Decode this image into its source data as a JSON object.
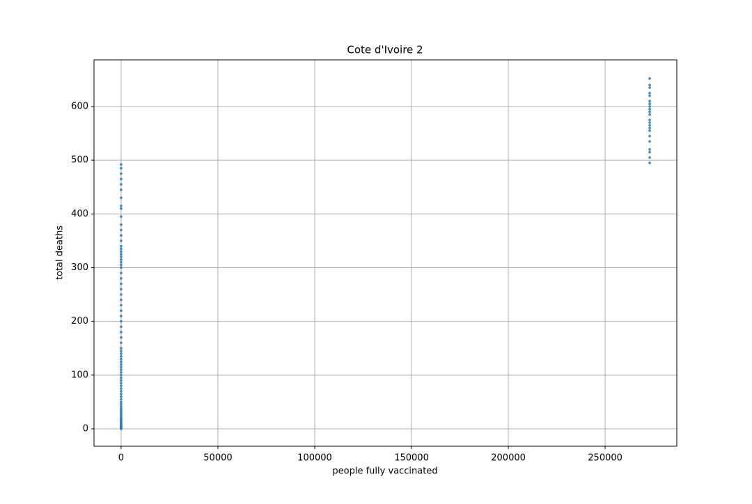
{
  "chart_data": {
    "type": "scatter",
    "title": "Cote d'Ivoire 2",
    "x_label": "people fully vaccinated",
    "y_label": "total deaths",
    "color": "#1f77b4",
    "grid": true,
    "xlim": [
      -14000,
      287000
    ],
    "ylim": [
      -32.4,
      686.8
    ],
    "xticks": [
      0,
      50000,
      100000,
      150000,
      200000,
      250000
    ],
    "yticks": [
      0,
      100,
      200,
      300,
      400,
      500,
      600
    ],
    "x": [
      0,
      0,
      0,
      0,
      0,
      0,
      0,
      0,
      0,
      0,
      0,
      0,
      0,
      0,
      0,
      0,
      0,
      0,
      0,
      0,
      0,
      0,
      0,
      0,
      0,
      0,
      0,
      0,
      0,
      0,
      0,
      0,
      0,
      0,
      0,
      0,
      0,
      0,
      0,
      0,
      0,
      0,
      0,
      0,
      0,
      0,
      0,
      0,
      0,
      0,
      0,
      0,
      0,
      0,
      0,
      0,
      0,
      0,
      0,
      0,
      0,
      0,
      0,
      0,
      0,
      0,
      0,
      0,
      0,
      0,
      0,
      0,
      0,
      0,
      0,
      0,
      0,
      0,
      0,
      0,
      273000,
      273000,
      273000,
      273000,
      273000,
      273000,
      273000,
      273000,
      273000,
      273000,
      273000,
      273000,
      273000,
      273000,
      273000,
      273000,
      273000,
      273000,
      273000,
      273000,
      273000,
      273000
    ],
    "values": [
      0,
      1,
      2,
      3,
      4,
      5,
      6,
      8,
      10,
      12,
      14,
      16,
      18,
      20,
      23,
      26,
      29,
      32,
      35,
      38,
      42,
      46,
      50,
      55,
      60,
      65,
      70,
      75,
      80,
      85,
      90,
      95,
      100,
      105,
      110,
      115,
      120,
      125,
      130,
      135,
      140,
      145,
      150,
      160,
      170,
      180,
      190,
      200,
      210,
      220,
      230,
      240,
      250,
      260,
      270,
      280,
      290,
      300,
      305,
      310,
      315,
      320,
      325,
      330,
      335,
      340,
      350,
      360,
      370,
      380,
      395,
      410,
      415,
      430,
      445,
      455,
      465,
      475,
      485,
      492,
      495,
      505,
      515,
      520,
      535,
      545,
      555,
      560,
      565,
      570,
      575,
      585,
      590,
      595,
      600,
      605,
      610,
      620,
      625,
      635,
      640,
      652
    ]
  }
}
